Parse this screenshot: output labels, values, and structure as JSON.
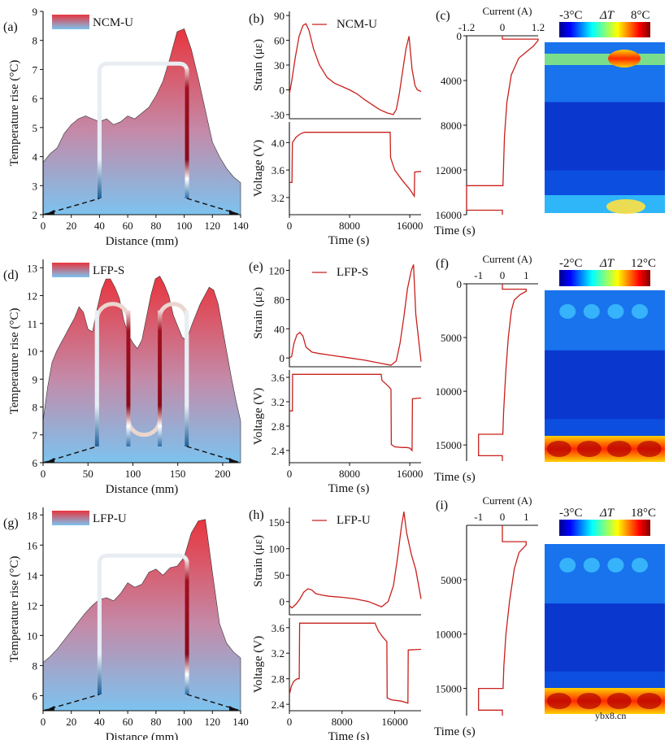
{
  "colors": {
    "red": "#e8353d",
    "blue": "#7cc3ef",
    "trace": "#c8201c"
  },
  "watermark": "ybx8.cn",
  "chart_data": [
    {
      "panel": "(a)",
      "type": "area",
      "legend": "NCM-U",
      "xlabel": "Distance (mm)",
      "ylabel": "Temperature rise (°C)",
      "xlim": [
        0,
        140
      ],
      "ylim": [
        2,
        9
      ],
      "xticks": [
        0,
        20,
        40,
        60,
        80,
        100,
        120,
        140
      ],
      "yticks": [
        2,
        3,
        4,
        5,
        6,
        7,
        8,
        9
      ],
      "x": [
        0,
        5,
        10,
        15,
        20,
        25,
        30,
        35,
        40,
        45,
        50,
        55,
        60,
        65,
        70,
        75,
        80,
        85,
        90,
        95,
        100,
        105,
        110,
        115,
        120,
        125,
        130,
        135,
        140
      ],
      "y": [
        3.8,
        4.1,
        4.3,
        4.8,
        5.1,
        5.3,
        5.4,
        5.3,
        5.2,
        5.3,
        5.1,
        5.2,
        5.4,
        5.3,
        5.5,
        5.7,
        6.1,
        6.6,
        7.4,
        8.3,
        8.4,
        7.7,
        6.7,
        5.6,
        4.5,
        4.0,
        3.6,
        3.3,
        3.1
      ],
      "cell_x": [
        40,
        102
      ],
      "cell_top": 7.2
    },
    {
      "panel": "(b)",
      "type": "line",
      "legend": "NCM-U",
      "xlabel": "Time (s)",
      "xlim": [
        0,
        17500
      ],
      "xticks": [
        0,
        8000,
        16000
      ],
      "strain": {
        "ylabel": "Strain (με)",
        "ylim": [
          -35,
          95
        ],
        "yticks": [
          -30,
          0,
          30,
          60,
          90
        ],
        "x": [
          0,
          300,
          800,
          1300,
          1800,
          2200,
          2600,
          3200,
          4000,
          5000,
          6000,
          7000,
          8000,
          9000,
          10000,
          11000,
          12000,
          13000,
          13800,
          14200,
          14600,
          15000,
          15500,
          15900,
          16300,
          16700,
          17000,
          17500
        ],
        "y": [
          -5,
          10,
          40,
          65,
          78,
          80,
          72,
          50,
          30,
          15,
          8,
          4,
          0,
          -5,
          -12,
          -18,
          -24,
          -28,
          -30,
          -24,
          -5,
          20,
          50,
          65,
          25,
          5,
          0,
          -2
        ]
      },
      "voltage": {
        "ylabel": "Voltage (V)",
        "ylim": [
          2.95,
          4.3
        ],
        "yticks": [
          3.2,
          3.6,
          4.0
        ],
        "x": [
          0,
          350,
          400,
          900,
          1500,
          2000,
          3000,
          8000,
          12000,
          13000,
          13400,
          13450,
          14000,
          15000,
          16000,
          16600,
          16650,
          17500
        ],
        "y": [
          3.42,
          3.42,
          4.0,
          4.08,
          4.13,
          4.15,
          4.15,
          4.15,
          4.15,
          4.15,
          4.15,
          3.78,
          3.6,
          3.45,
          3.32,
          3.22,
          3.57,
          3.58
        ]
      }
    },
    {
      "panel": "(c)",
      "type": "heatmap",
      "current_label": "Current (A)",
      "current_ticks": [
        "-1.2",
        "0",
        "1.2"
      ],
      "current_range": [
        -1.2,
        1.2
      ],
      "time_label": "Time (s)",
      "time_range": [
        0,
        16000
      ],
      "time_ticks": [
        0,
        4000,
        8000,
        12000,
        16000
      ],
      "current": [
        [
          0,
          0
        ],
        [
          300,
          0
        ],
        [
          300,
          1.2
        ],
        [
          400,
          1.2
        ],
        [
          900,
          1.05
        ],
        [
          2000,
          0.55
        ],
        [
          3500,
          0.3
        ],
        [
          6000,
          0.15
        ],
        [
          9000,
          0.07
        ],
        [
          12500,
          0.03
        ],
        [
          13400,
          0.02
        ],
        [
          13400,
          -1.2
        ],
        [
          15600,
          -1.2
        ],
        [
          15600,
          0.0
        ],
        [
          16000,
          0.0
        ]
      ],
      "colorbar": {
        "min_label": "-3°C",
        "symbol": "ΔT",
        "max_label": "8°C"
      }
    },
    {
      "panel": "(d)",
      "type": "area",
      "legend": "LFP-S",
      "xlabel": "Distance (mm)",
      "ylabel": "Temperature rise (°C)",
      "xlim": [
        0,
        220
      ],
      "ylim": [
        6,
        13.3
      ],
      "xticks": [
        0,
        50,
        100,
        150,
        200
      ],
      "yticks": [
        6,
        7,
        8,
        9,
        10,
        11,
        12,
        13
      ],
      "x": [
        0,
        5,
        10,
        15,
        20,
        25,
        30,
        35,
        40,
        45,
        50,
        55,
        60,
        65,
        70,
        75,
        80,
        85,
        90,
        95,
        100,
        105,
        110,
        115,
        120,
        125,
        130,
        135,
        140,
        145,
        150,
        155,
        160,
        165,
        170,
        175,
        180,
        185,
        190,
        195,
        200,
        205,
        210,
        215,
        220
      ],
      "y": [
        7.5,
        8.7,
        9.6,
        10.0,
        10.3,
        10.6,
        10.9,
        11.2,
        11.6,
        11.4,
        10.8,
        10.7,
        11.5,
        12.2,
        12.6,
        12.6,
        12.3,
        11.9,
        11.1,
        10.6,
        10.3,
        10.1,
        10.4,
        11.2,
        12.0,
        12.6,
        12.7,
        12.4,
        12.0,
        11.3,
        10.9,
        10.5,
        10.4,
        10.9,
        11.3,
        11.7,
        12.0,
        12.3,
        12.2,
        11.7,
        10.8,
        9.9,
        9.0,
        8.2,
        7.5
      ],
      "cell_x": [
        60,
        95,
        130,
        160
      ],
      "cell_top": 11.7,
      "cell_bottom": 7.0
    },
    {
      "panel": "(e)",
      "type": "line",
      "legend": "LFP-S",
      "xlabel": "Time (s)",
      "xlim": [
        0,
        17500
      ],
      "xticks": [
        0,
        8000,
        16000
      ],
      "strain": {
        "ylabel": "Strain (με)",
        "ylim": [
          -12,
          135
        ],
        "yticks": [
          0,
          40,
          80,
          120
        ],
        "x": [
          0,
          300,
          600,
          1000,
          1400,
          1800,
          2200,
          3000,
          4000,
          6000,
          8000,
          10000,
          12000,
          13500,
          14200,
          14700,
          15200,
          15700,
          16200,
          16500,
          16800,
          17500
        ],
        "y": [
          0,
          2,
          20,
          32,
          35,
          30,
          15,
          8,
          6,
          3,
          0,
          -3,
          -7,
          -10,
          -4,
          20,
          55,
          95,
          120,
          128,
          60,
          -5
        ]
      },
      "voltage": {
        "ylabel": "Voltage (V)",
        "ylim": [
          2.2,
          3.72
        ],
        "yticks": [
          2.4,
          2.8,
          3.2,
          3.6
        ],
        "x": [
          0,
          400,
          420,
          900,
          12200,
          12300,
          13200,
          13500,
          13550,
          14000,
          15000,
          15600,
          16000,
          16300,
          16350,
          17500
        ],
        "y": [
          3.05,
          3.05,
          3.65,
          3.65,
          3.65,
          3.55,
          3.45,
          3.4,
          2.5,
          2.46,
          2.45,
          2.45,
          2.44,
          2.4,
          3.25,
          3.26
        ]
      }
    },
    {
      "panel": "(f)",
      "type": "heatmap",
      "current_label": "Current (A)",
      "current_ticks": [
        "-1",
        "0",
        "1"
      ],
      "current_range": [
        -1.5,
        1.5
      ],
      "time_label": "Time (s)",
      "time_range": [
        0,
        16500
      ],
      "time_ticks": [
        0,
        5000,
        10000,
        15000
      ],
      "current": [
        [
          0,
          0
        ],
        [
          500,
          0
        ],
        [
          500,
          1.0
        ],
        [
          700,
          1.0
        ],
        [
          1000,
          0.75
        ],
        [
          1500,
          0.5
        ],
        [
          2500,
          0.38
        ],
        [
          5000,
          0.25
        ],
        [
          8000,
          0.15
        ],
        [
          10000,
          0.1
        ],
        [
          12000,
          0.05
        ],
        [
          14000,
          0.02
        ],
        [
          14000,
          -1.0
        ],
        [
          16000,
          -1.0
        ],
        [
          16000,
          0.0
        ],
        [
          16500,
          0.0
        ]
      ],
      "colorbar": {
        "min_label": "-2°C",
        "symbol": "ΔT",
        "max_label": "12°C"
      }
    },
    {
      "panel": "(g)",
      "type": "area",
      "legend": "LFP-U",
      "xlabel": "Distance (mm)",
      "ylabel": "Temperature rise (°C)",
      "xlim": [
        0,
        140
      ],
      "ylim": [
        5,
        18.5
      ],
      "xticks": [
        0,
        20,
        40,
        60,
        80,
        100,
        120,
        140
      ],
      "yticks": [
        6,
        8,
        10,
        12,
        14,
        16,
        18
      ],
      "x": [
        0,
        5,
        10,
        15,
        20,
        25,
        30,
        35,
        40,
        45,
        50,
        55,
        60,
        65,
        70,
        75,
        80,
        85,
        90,
        95,
        100,
        105,
        110,
        115,
        120,
        125,
        130,
        135,
        140
      ],
      "y": [
        8.2,
        8.6,
        9.1,
        9.7,
        10.3,
        10.9,
        11.5,
        12.0,
        12.4,
        12.5,
        12.3,
        12.8,
        13.5,
        13.2,
        13.4,
        14.2,
        14.4,
        14.0,
        14.5,
        14.6,
        15.2,
        16.8,
        17.6,
        17.7,
        14.2,
        10.8,
        9.5,
        8.9,
        8.5
      ],
      "cell_x": [
        40,
        102
      ],
      "cell_top": 15.3
    },
    {
      "panel": "(h)",
      "type": "line",
      "legend": "LFP-U",
      "xlabel": "Time (s)",
      "xlim": [
        0,
        20000
      ],
      "xticks": [
        0,
        8000,
        16000
      ],
      "strain": {
        "ylabel": "Strain (με)",
        "ylim": [
          -25,
          178
        ],
        "yticks": [
          0,
          50,
          100,
          150
        ],
        "x": [
          0,
          400,
          1000,
          1600,
          2200,
          2800,
          3400,
          4000,
          5000,
          6000,
          8000,
          10000,
          12000,
          13000,
          14000,
          15000,
          15800,
          16400,
          17000,
          17400,
          17800,
          18500,
          19200,
          20000
        ],
        "y": [
          -8,
          -12,
          -5,
          5,
          18,
          24,
          22,
          15,
          12,
          10,
          8,
          5,
          0,
          -5,
          -10,
          0,
          30,
          80,
          140,
          170,
          130,
          90,
          60,
          5
        ]
      },
      "voltage": {
        "ylabel": "Voltage (V)",
        "ylim": [
          2.3,
          3.75
        ],
        "yticks": [
          2.4,
          2.8,
          3.2,
          3.6
        ],
        "x": [
          0,
          300,
          600,
          900,
          1200,
          1500,
          1550,
          2000,
          13000,
          13500,
          14200,
          14800,
          14850,
          15500,
          17000,
          18000,
          18050,
          20000
        ],
        "y": [
          2.55,
          2.68,
          2.75,
          2.78,
          2.8,
          2.8,
          3.67,
          3.67,
          3.67,
          3.55,
          3.45,
          3.38,
          2.5,
          2.47,
          2.45,
          2.42,
          3.25,
          3.26
        ]
      }
    },
    {
      "panel": "(i)",
      "type": "heatmap",
      "current_label": "Current (A)",
      "current_ticks": [
        "-1",
        "0",
        "1"
      ],
      "current_range": [
        -1.5,
        1.5
      ],
      "time_label": "Time (s)",
      "time_range": [
        0,
        17500
      ],
      "time_ticks": [
        5000,
        10000,
        15000
      ],
      "current": [
        [
          0,
          0
        ],
        [
          1500,
          0
        ],
        [
          1500,
          1.0
        ],
        [
          1800,
          1.0
        ],
        [
          2500,
          0.7
        ],
        [
          4000,
          0.5
        ],
        [
          7000,
          0.3
        ],
        [
          10000,
          0.15
        ],
        [
          13000,
          0.06
        ],
        [
          15000,
          0.03
        ],
        [
          15000,
          -1.0
        ],
        [
          17000,
          -1.0
        ],
        [
          17000,
          0.0
        ],
        [
          17500,
          0.0
        ]
      ],
      "colorbar": {
        "min_label": "-3°C",
        "symbol": "ΔT",
        "max_label": "18°C"
      }
    }
  ]
}
